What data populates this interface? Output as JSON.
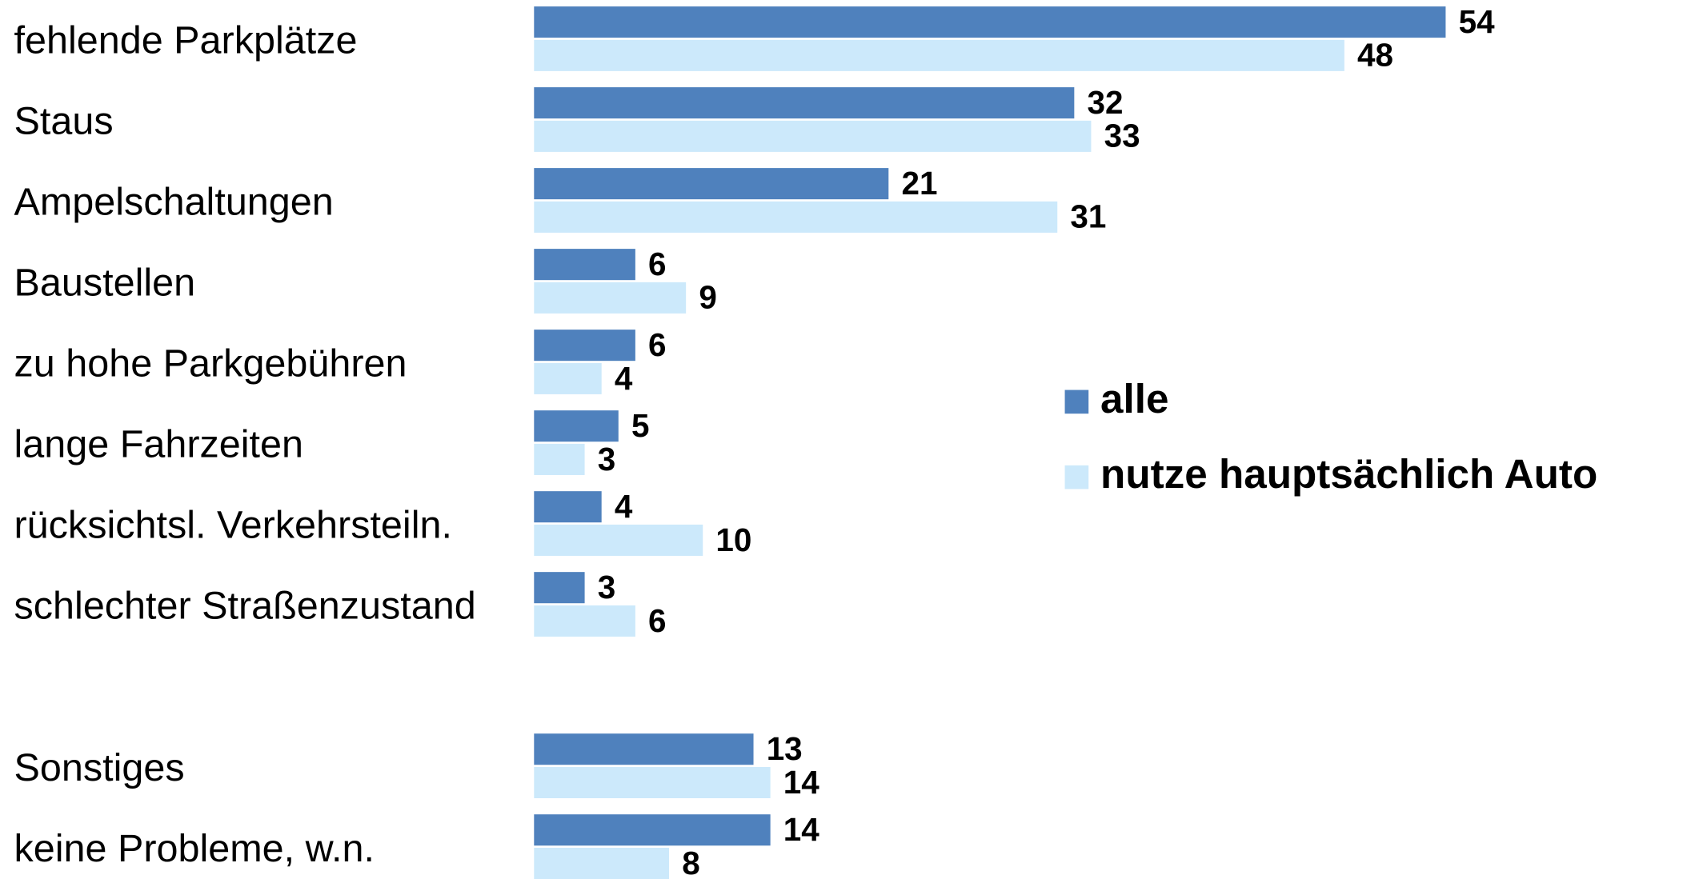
{
  "chart_data": {
    "type": "bar",
    "orientation": "horizontal",
    "categories": [
      "fehlende Parkplätze",
      "Staus",
      "Ampelschaltungen",
      "Baustellen",
      "zu hohe Parkgebühren",
      "lange Fahrzeiten",
      "rücksichtsl. Verkehrsteiln.",
      "schlechter Straßenzustand",
      null,
      "Sonstiges",
      "keine Probleme, w.n."
    ],
    "series": [
      {
        "name": "alle",
        "color": "#4f81bd",
        "values": [
          54,
          32,
          21,
          6,
          6,
          5,
          4,
          3,
          null,
          13,
          14
        ]
      },
      {
        "name": "nutze hauptsächlich Auto",
        "color": "#cce9fb",
        "values": [
          48,
          33,
          31,
          9,
          4,
          3,
          10,
          6,
          null,
          14,
          8
        ]
      }
    ],
    "legend": "right"
  }
}
